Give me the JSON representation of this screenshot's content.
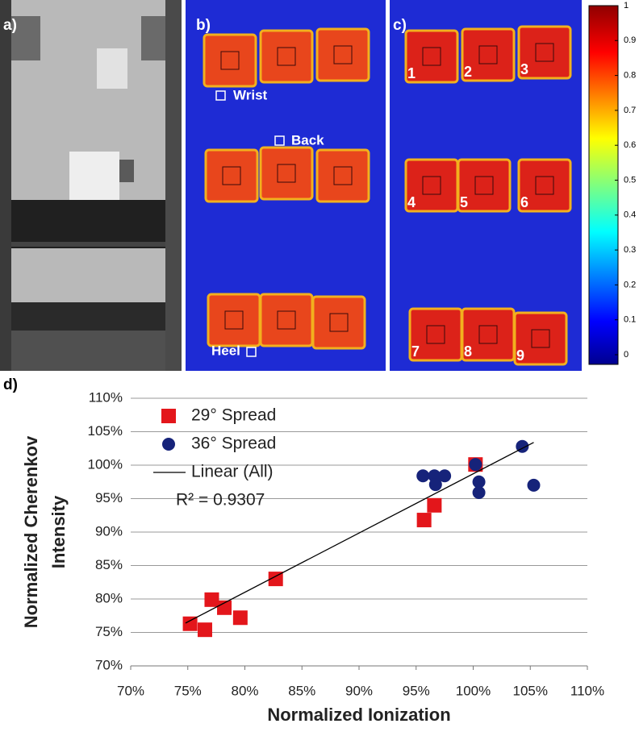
{
  "figure": {
    "panel_labels": [
      "a)",
      "b)",
      "c)",
      "d)"
    ],
    "panel_b": {
      "labels": [
        "Wrist",
        "Back",
        "Heel"
      ]
    },
    "panel_c": {
      "labels": [
        "1",
        "2",
        "3",
        "4",
        "5",
        "6",
        "7",
        "8",
        "9"
      ]
    },
    "colorbar": {
      "ticks": [
        0,
        0.1,
        0.2,
        0.3,
        0.4,
        0.5,
        0.6,
        0.7,
        0.8,
        0.9,
        1
      ]
    }
  },
  "chart_data": {
    "type": "scatter",
    "xlabel": "Normalized Ionization",
    "ylabel": [
      "Normalized Cherenkov",
      "Intensity"
    ],
    "annotation": "R² = 0.9307",
    "legend": "upper left",
    "grid": true,
    "xlim": [
      70,
      110
    ],
    "ylim": [
      70,
      110
    ],
    "xticks": [
      {
        "value": 70,
        "label": "70%"
      },
      {
        "value": 75,
        "label": "75%"
      },
      {
        "value": 80,
        "label": "80%"
      },
      {
        "value": 85,
        "label": "85%"
      },
      {
        "value": 90,
        "label": "90%"
      },
      {
        "value": 95,
        "label": "95%"
      },
      {
        "value": 100,
        "label": "100%"
      },
      {
        "value": 105,
        "label": "105%"
      },
      {
        "value": 110,
        "label": "110%"
      }
    ],
    "yticks": [
      {
        "value": 70,
        "label": "70%"
      },
      {
        "value": 75,
        "label": "75%"
      },
      {
        "value": 80,
        "label": "80%"
      },
      {
        "value": 85,
        "label": "85%"
      },
      {
        "value": 90,
        "label": "90%"
      },
      {
        "value": 95,
        "label": "95%"
      },
      {
        "value": 100,
        "label": "100%"
      },
      {
        "value": 105,
        "label": "105%"
      },
      {
        "value": 110,
        "label": "110%"
      }
    ],
    "series": [
      {
        "name": "29° Spread",
        "color": "#e3161b",
        "marker": "square",
        "x": [
          75.2,
          76.5,
          77.1,
          78.2,
          79.6,
          82.7,
          95.7,
          96.6,
          100.2
        ],
        "values": [
          76.3,
          75.4,
          79.9,
          78.7,
          77.2,
          83.0,
          91.8,
          94.0,
          100.1
        ]
      },
      {
        "name": "36°  Spread",
        "color": "#16237a",
        "marker": "circle",
        "x": [
          95.6,
          96.6,
          96.7,
          97.5,
          100.2,
          100.5,
          100.5,
          104.3,
          105.3
        ],
        "values": [
          98.4,
          98.4,
          97.1,
          98.4,
          100.1,
          97.5,
          95.9,
          102.8,
          97.0
        ]
      },
      {
        "name": "Linear (All)",
        "color": "#000000",
        "marker": "line",
        "x": [
          74.8,
          105.3
        ],
        "values": [
          76.4,
          103.4
        ]
      }
    ]
  }
}
